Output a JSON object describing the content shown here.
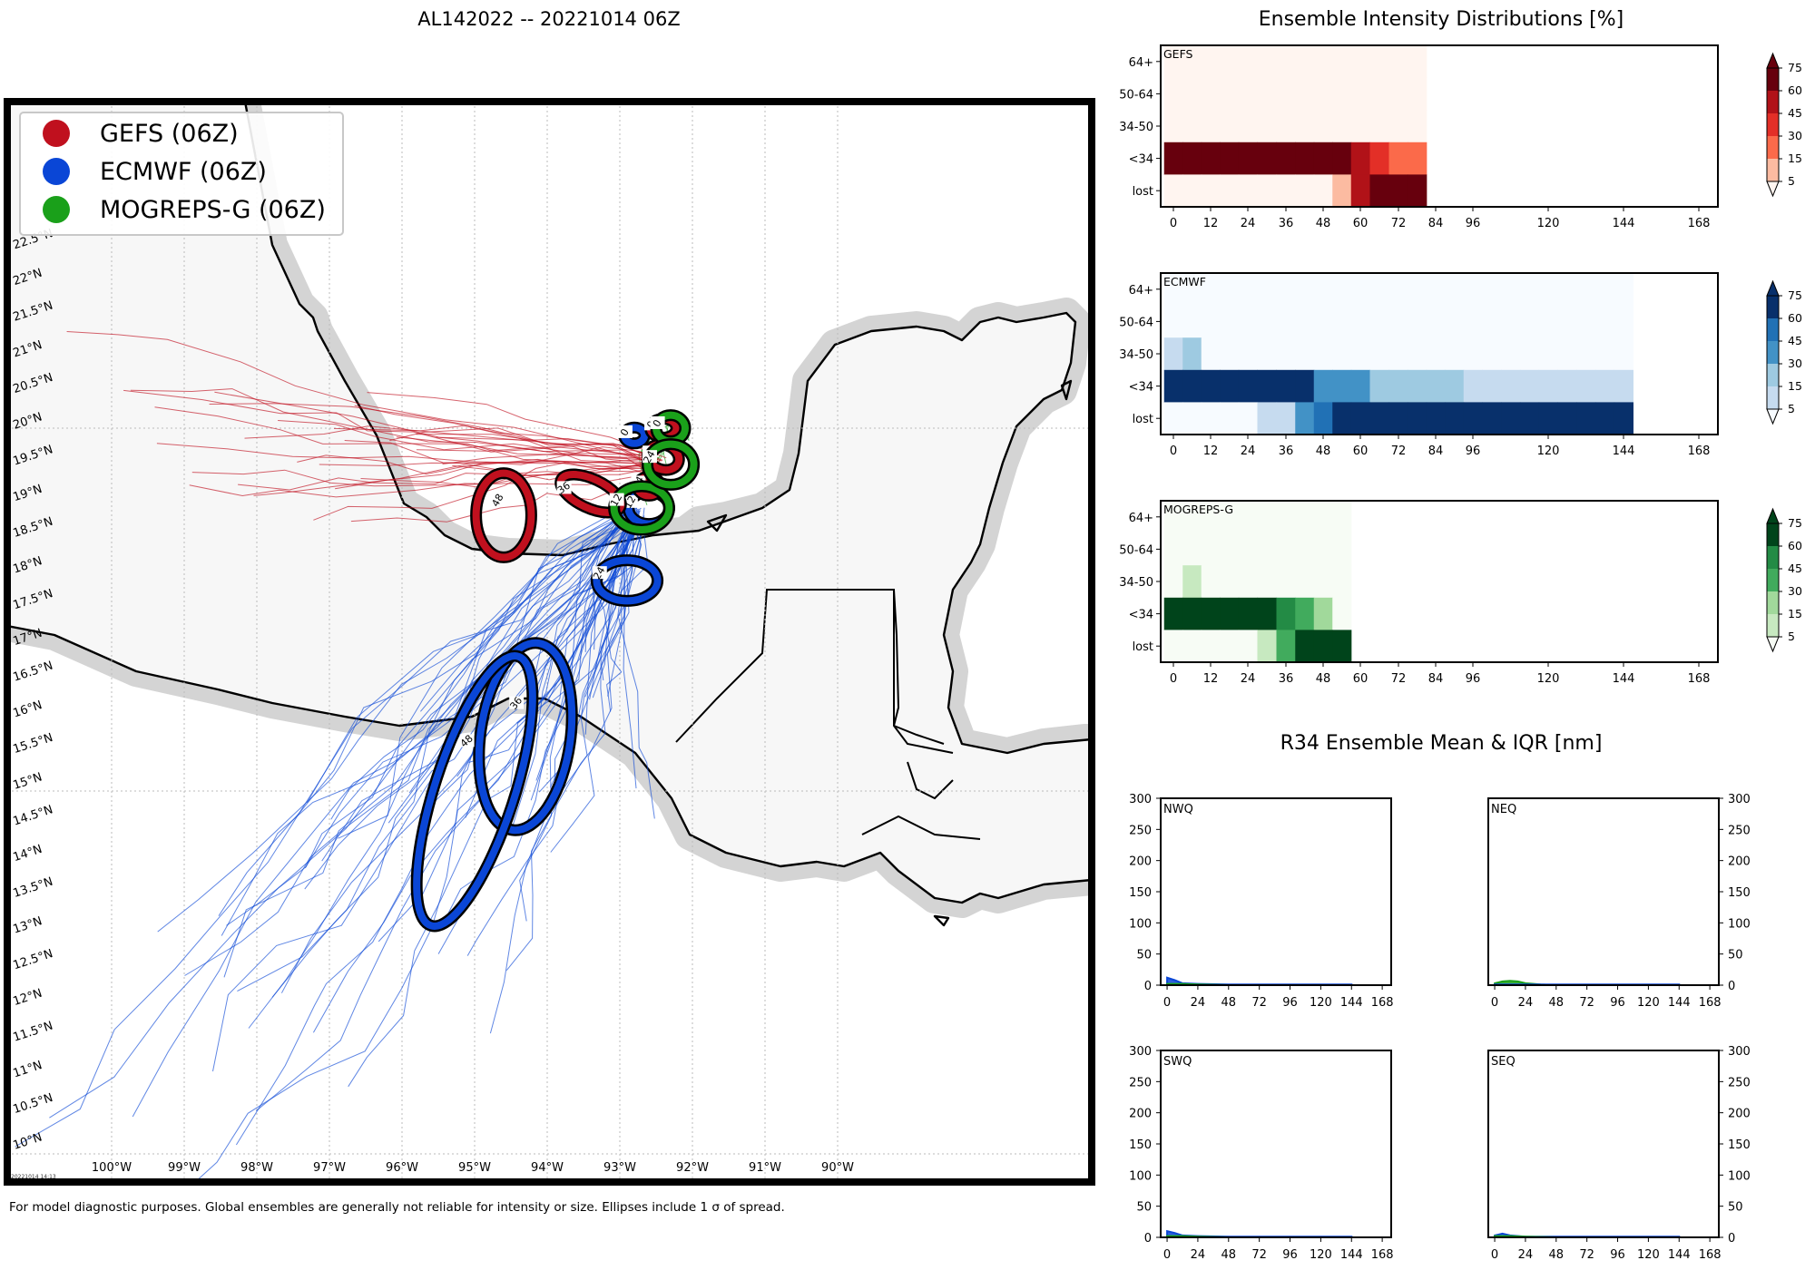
{
  "main_title": "AL142022 -- 20221014 06Z",
  "footnote": "For model diagnostic purposes. Global ensembles are generally not reliable for intensity or size. Ellipses include 1 σ of spread.",
  "stamp": "20221014 14:13",
  "colors": {
    "gefs": "#c0101e",
    "ecmwf": "#0a46d6",
    "mogreps": "#1aa01a",
    "land": "#f7f7f7",
    "coast_halo": "#c8c8c8"
  },
  "chart_data": [
    {
      "type": "map",
      "name": "track-map",
      "lon_ticks": [
        -100,
        -99,
        -98,
        -97,
        -96,
        -95,
        -94,
        -93,
        -92,
        -91,
        -90
      ],
      "lon_labels": [
        "100°W",
        "99°W",
        "98°W",
        "97°W",
        "96°W",
        "95°W",
        "94°W",
        "93°W",
        "92°W",
        "91°W",
        "90°W"
      ],
      "lat_ticks": [
        10,
        10.5,
        11,
        11.5,
        12,
        12.5,
        13,
        13.5,
        14,
        14.5,
        15,
        15.5,
        16,
        16.5,
        17,
        17.5,
        18,
        18.5,
        19,
        19.5,
        20,
        20.5,
        21,
        21.5,
        22,
        22.5
      ],
      "lat_labels": [
        "10°N",
        "10.5°N",
        "11°N",
        "11.5°N",
        "12°N",
        "12.5°N",
        "13°N",
        "13.5°N",
        "14°N",
        "14.5°N",
        "15°N",
        "15.5°N",
        "16°N",
        "16.5°N",
        "17°N",
        "17.5°N",
        "18°N",
        "18.5°N",
        "19°N",
        "19.5°N",
        "20°N",
        "20.5°N",
        "21°N",
        "21.5°N",
        "22°N",
        "22.5°N"
      ],
      "legend": [
        {
          "label": "GEFS (06Z)",
          "model": "gefs"
        },
        {
          "label": "ECMWF (06Z)",
          "model": "ecmwf"
        },
        {
          "label": "MOGREPS-G (06Z)",
          "model": "mogreps"
        }
      ],
      "ellipses": [
        {
          "model": "gefs",
          "hour": "0",
          "lon": -92.4,
          "lat": 20.0,
          "a": 0.18,
          "b": 0.13,
          "angle": 0
        },
        {
          "model": "gefs",
          "hour": "12",
          "lon": -92.4,
          "lat": 19.6,
          "a": 0.22,
          "b": 0.17,
          "angle": 20
        },
        {
          "model": "gefs",
          "hour": "24",
          "lon": -92.6,
          "lat": 19.2,
          "a": 0.16,
          "b": 0.13,
          "angle": 0
        },
        {
          "model": "gefs",
          "hour": "36",
          "lon": -93.4,
          "lat": 19.1,
          "a": 0.45,
          "b": 0.2,
          "angle": 25
        },
        {
          "model": "gefs",
          "hour": "48",
          "lon": -94.6,
          "lat": 18.8,
          "a": 0.38,
          "b": 0.58,
          "angle": 0
        },
        {
          "model": "ecmwf",
          "hour": "0",
          "lon": -92.8,
          "lat": 19.9,
          "a": 0.14,
          "b": 0.11,
          "angle": 0
        },
        {
          "model": "ecmwf",
          "hour": "12",
          "lon": -92.6,
          "lat": 18.9,
          "a": 0.28,
          "b": 0.22,
          "angle": 0
        },
        {
          "model": "ecmwf",
          "hour": "24",
          "lon": -92.9,
          "lat": 17.9,
          "a": 0.42,
          "b": 0.28,
          "angle": 0
        },
        {
          "model": "ecmwf",
          "hour": "36",
          "lon": -94.3,
          "lat": 15.75,
          "a": 0.62,
          "b": 1.3,
          "angle": 8
        },
        {
          "model": "ecmwf",
          "hour": "48",
          "lon": -95.0,
          "lat": 15.0,
          "a": 0.55,
          "b": 1.95,
          "angle": 18
        },
        {
          "model": "mogreps",
          "hour": "0",
          "lon": -92.3,
          "lat": 20.0,
          "a": 0.2,
          "b": 0.18,
          "angle": 0
        },
        {
          "model": "mogreps",
          "hour": "12",
          "lon": -92.7,
          "lat": 18.9,
          "a": 0.38,
          "b": 0.3,
          "angle": 0
        },
        {
          "model": "mogreps",
          "hour": "24",
          "lon": -92.3,
          "lat": 19.5,
          "a": 0.32,
          "b": 0.28,
          "angle": 0
        }
      ]
    },
    {
      "type": "heatmap",
      "name": "intensity-gefs",
      "title": "Ensemble Intensity Distributions [%]",
      "label": "GEFS",
      "cmap": [
        "#fff5f0",
        "#fcbba1",
        "#fb6a4a",
        "#e32f27",
        "#b11218",
        "#67000d"
      ],
      "rows": [
        "64+",
        "50-64",
        "34-50",
        "<34",
        "lost"
      ],
      "xticks": [
        0,
        12,
        24,
        36,
        48,
        60,
        72,
        84,
        96,
        120,
        144,
        168
      ],
      "hours": [
        0,
        6,
        12,
        18,
        24,
        30,
        36,
        42,
        48,
        54,
        60,
        66,
        72,
        78
      ],
      "values": [
        [
          0,
          0,
          0,
          0,
          0,
          0,
          0,
          0,
          0,
          0,
          0,
          0,
          0,
          0
        ],
        [
          0,
          0,
          0,
          0,
          0,
          0,
          0,
          0,
          0,
          0,
          0,
          0,
          0,
          0
        ],
        [
          0,
          0,
          0,
          0,
          0,
          0,
          0,
          0,
          0,
          0,
          0,
          0,
          0,
          0
        ],
        [
          100,
          100,
          100,
          100,
          100,
          100,
          100,
          100,
          100,
          100,
          55,
          35,
          20,
          20
        ],
        [
          0,
          0,
          0,
          0,
          0,
          0,
          0,
          0,
          0,
          12,
          55,
          80,
          80,
          80
        ]
      ],
      "colorbar_ticks": [
        5,
        15,
        30,
        45,
        60,
        75
      ]
    },
    {
      "type": "heatmap",
      "name": "intensity-ecmwf",
      "label": "ECMWF",
      "cmap": [
        "#f7fbff",
        "#c6dbef",
        "#9ecae1",
        "#4292c6",
        "#2171b5",
        "#08306b"
      ],
      "rows": [
        "64+",
        "50-64",
        "34-50",
        "<34",
        "lost"
      ],
      "xticks": [
        0,
        12,
        24,
        36,
        48,
        60,
        72,
        84,
        96,
        120,
        144,
        168
      ],
      "hours": [
        0,
        6,
        12,
        18,
        24,
        30,
        36,
        42,
        48,
        54,
        60,
        66,
        72,
        78,
        84,
        90,
        96,
        102,
        108,
        114,
        120,
        126,
        132,
        138,
        144
      ],
      "values": [
        [
          0,
          0,
          0,
          0,
          0,
          0,
          0,
          0,
          0,
          0,
          0,
          0,
          0,
          0,
          0,
          0,
          0,
          0,
          0,
          0,
          0,
          0,
          0,
          0,
          0
        ],
        [
          0,
          0,
          0,
          0,
          0,
          0,
          0,
          0,
          0,
          0,
          0,
          0,
          0,
          0,
          0,
          0,
          0,
          0,
          0,
          0,
          0,
          0,
          0,
          0,
          0
        ],
        [
          12,
          25,
          0,
          0,
          0,
          0,
          0,
          0,
          0,
          0,
          0,
          0,
          0,
          0,
          0,
          0,
          0,
          0,
          0,
          0,
          0,
          0,
          0,
          0,
          0
        ],
        [
          88,
          75,
          100,
          100,
          100,
          100,
          100,
          60,
          40,
          30,
          30,
          20,
          20,
          20,
          20,
          20,
          10,
          10,
          10,
          10,
          10,
          10,
          10,
          10,
          10
        ],
        [
          0,
          0,
          0,
          0,
          0,
          10,
          10,
          30,
          50,
          60,
          60,
          80,
          80,
          80,
          80,
          80,
          90,
          90,
          90,
          90,
          90,
          90,
          90,
          90,
          90
        ]
      ],
      "colorbar_ticks": [
        5,
        15,
        30,
        45,
        60,
        75
      ]
    },
    {
      "type": "heatmap",
      "name": "intensity-mogreps",
      "label": "MOGREPS-G",
      "cmap": [
        "#f7fcf5",
        "#c7e9c0",
        "#a1d99b",
        "#41ab5d",
        "#238b45",
        "#00441b"
      ],
      "rows": [
        "64+",
        "50-64",
        "34-50",
        "<34",
        "lost"
      ],
      "xticks": [
        0,
        12,
        24,
        36,
        48,
        60,
        72,
        84,
        96,
        120,
        144,
        168
      ],
      "hours": [
        0,
        6,
        12,
        18,
        24,
        30,
        36,
        42,
        48,
        54
      ],
      "values": [
        [
          0,
          0,
          0,
          0,
          0,
          0,
          0,
          0,
          0,
          0
        ],
        [
          0,
          0,
          0,
          0,
          0,
          0,
          0,
          0,
          0,
          0
        ],
        [
          0,
          12,
          0,
          0,
          0,
          0,
          0,
          0,
          0,
          0
        ],
        [
          100,
          88,
          100,
          100,
          100,
          100,
          50,
          30,
          15,
          0
        ],
        [
          0,
          0,
          0,
          0,
          0,
          10,
          40,
          80,
          85,
          100
        ]
      ],
      "colorbar_ticks": [
        5,
        15,
        30,
        45,
        60,
        75
      ]
    },
    {
      "type": "area",
      "name": "r34-panels",
      "title": "R34 Ensemble Mean & IQR [nm]",
      "xticks": [
        0,
        24,
        48,
        72,
        96,
        120,
        144,
        168
      ],
      "yticks": [
        0,
        50,
        100,
        150,
        200,
        250,
        300
      ],
      "ylim": [
        0,
        300
      ],
      "xlim": [
        -5,
        175
      ],
      "panels": [
        {
          "label": "NWQ",
          "series": [
            {
              "model": "ecmwf",
              "x": [
                0,
                6,
                12,
                24,
                48,
                72,
                96,
                120,
                144
              ],
              "y": [
                12,
                8,
                3,
                2,
                1,
                1,
                1,
                1,
                1
              ]
            },
            {
              "model": "mogreps",
              "x": [
                0,
                6,
                12,
                24,
                48
              ],
              "y": [
                2,
                2,
                2,
                1,
                0
              ]
            }
          ]
        },
        {
          "label": "NEQ",
          "series": [
            {
              "model": "mogreps",
              "x": [
                0,
                6,
                12,
                18,
                24,
                36,
                48
              ],
              "y": [
                3,
                6,
                7,
                6,
                3,
                1,
                0
              ]
            },
            {
              "model": "ecmwf",
              "x": [
                0,
                24,
                48,
                72,
                96,
                120,
                144
              ],
              "y": [
                1,
                1,
                1,
                1,
                1,
                1,
                1
              ]
            }
          ]
        },
        {
          "label": "SWQ",
          "series": [
            {
              "model": "ecmwf",
              "x": [
                0,
                6,
                12,
                24,
                48,
                72,
                96,
                120,
                144
              ],
              "y": [
                10,
                7,
                3,
                2,
                1,
                1,
                1,
                1,
                1
              ]
            },
            {
              "model": "mogreps",
              "x": [
                0,
                12,
                24,
                48
              ],
              "y": [
                2,
                2,
                1,
                0
              ]
            }
          ]
        },
        {
          "label": "SEQ",
          "series": [
            {
              "model": "ecmwf",
              "x": [
                0,
                6,
                12,
                24,
                48,
                72,
                96,
                120,
                144
              ],
              "y": [
                3,
                6,
                3,
                1,
                1,
                1,
                1,
                1,
                1
              ]
            },
            {
              "model": "mogreps",
              "x": [
                0,
                12,
                24,
                48
              ],
              "y": [
                2,
                2,
                1,
                0
              ]
            }
          ]
        }
      ]
    }
  ]
}
